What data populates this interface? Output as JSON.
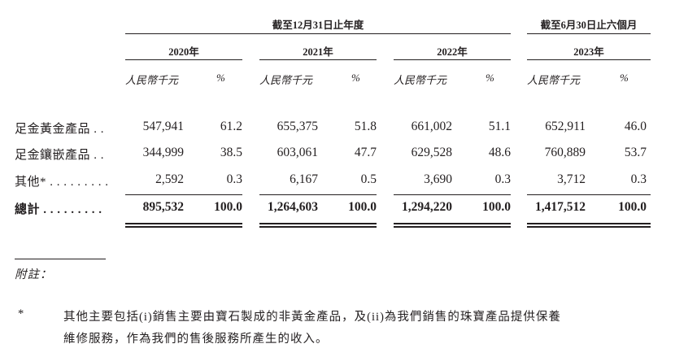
{
  "header": {
    "fy_group": "截至12月31日止年度",
    "hy_group": "截至6月30日止六個月",
    "years": [
      "2020年",
      "2021年",
      "2022年",
      "2023年"
    ],
    "unit_label": "人民幣千元",
    "pct_label": "%"
  },
  "rows": [
    {
      "label": "足金黃金產品 . .",
      "values": [
        "547,941",
        "61.2",
        "655,375",
        "51.8",
        "661,002",
        "51.1",
        "652,911",
        "46.0"
      ]
    },
    {
      "label": "足金鑲嵌產品 . .",
      "values": [
        "344,999",
        "38.5",
        "603,061",
        "47.7",
        "629,528",
        "48.6",
        "760,889",
        "53.7"
      ]
    },
    {
      "label": "其他* . . . . . . . . .",
      "values": [
        "2,592",
        "0.3",
        "6,167",
        "0.5",
        "3,690",
        "0.3",
        "3,712",
        "0.3"
      ]
    }
  ],
  "total": {
    "label": "總計 . . . . . . . . .",
    "values": [
      "895,532",
      "100.0",
      "1,264,603",
      "100.0",
      "1,294,220",
      "100.0",
      "1,417,512",
      "100.0"
    ]
  },
  "notes": {
    "title": "附註：",
    "marker": "*",
    "line1": "其他主要包括(i)銷售主要由寶石製成的非黃金產品，及(ii)為我們銷售的珠寶產品提供保養",
    "line2": "維修服務，作為我們的售後服務所產生的收入。"
  }
}
